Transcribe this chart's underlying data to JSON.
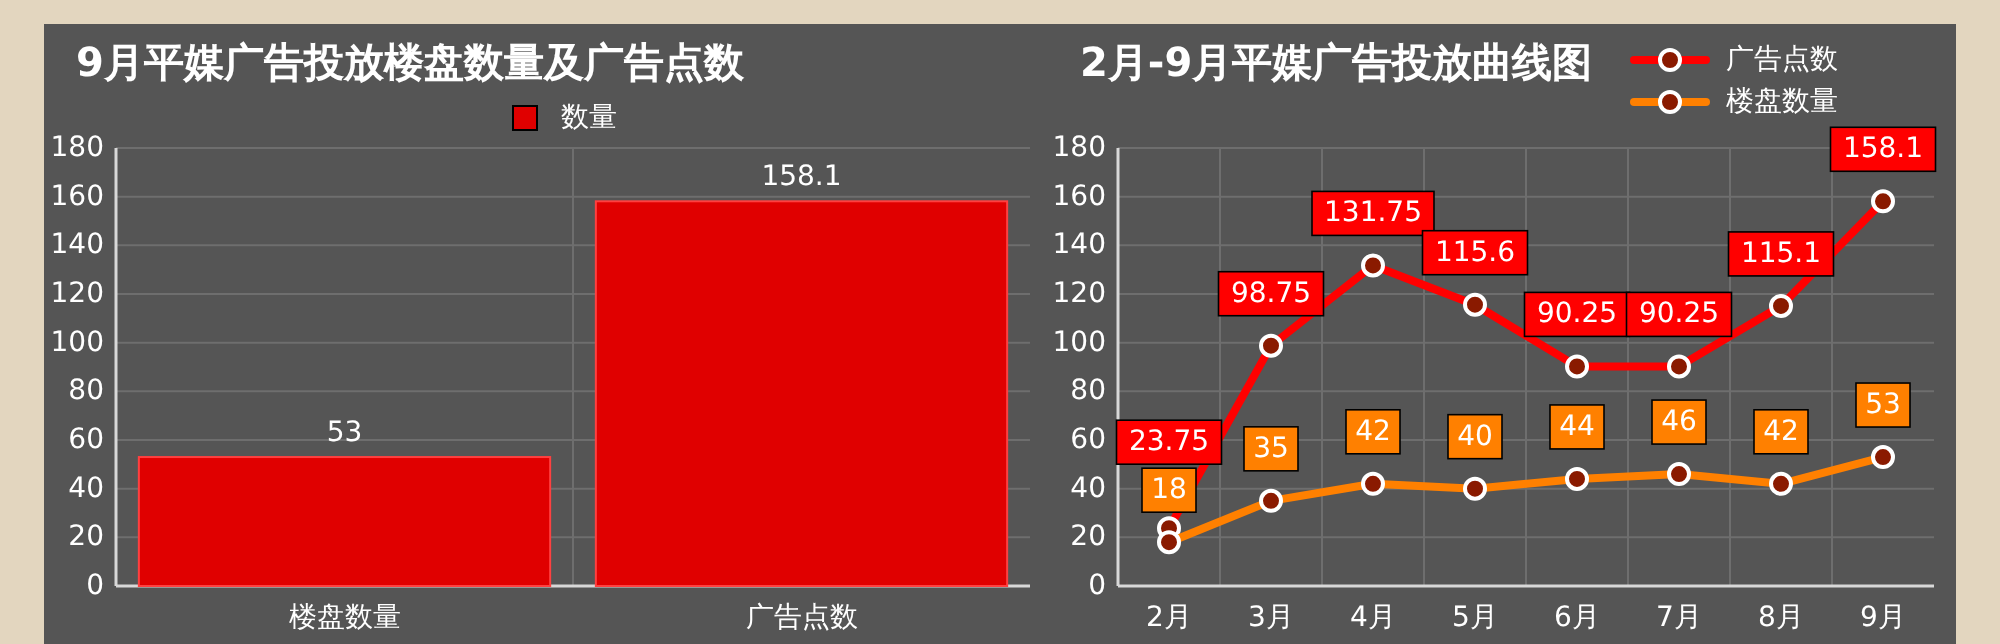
{
  "chart_data": [
    {
      "type": "bar",
      "title": "9月平媒广告投放楼盘数量及广告点数",
      "categories": [
        "楼盘数量",
        "广告点数"
      ],
      "series": [
        {
          "name": "数量",
          "color": "#e00000",
          "values": [
            53,
            158.1
          ]
        }
      ],
      "ylim": [
        0,
        180
      ],
      "yticks": [
        0,
        20,
        40,
        60,
        80,
        100,
        120,
        140,
        160,
        180
      ],
      "grid": true,
      "legend": "top",
      "data_labels": true
    },
    {
      "type": "line",
      "title": "2月-9月平媒广告投放曲线图",
      "categories": [
        "2月",
        "3月",
        "4月",
        "5月",
        "6月",
        "7月",
        "8月",
        "9月"
      ],
      "series": [
        {
          "name": "广告点数",
          "color": "#ff0000",
          "values": [
            23.75,
            98.75,
            131.75,
            115.6,
            90.25,
            90.25,
            115.1,
            158.1
          ]
        },
        {
          "name": "楼盘数量",
          "color": "#ff8000",
          "values": [
            18,
            35,
            42,
            40,
            44,
            46,
            42,
            53
          ]
        }
      ],
      "ylim": [
        0,
        180
      ],
      "yticks": [
        0,
        20,
        40,
        60,
        80,
        100,
        120,
        140,
        160,
        180
      ],
      "grid": true,
      "legend": "top right",
      "marker": "circle",
      "data_labels": true
    }
  ]
}
